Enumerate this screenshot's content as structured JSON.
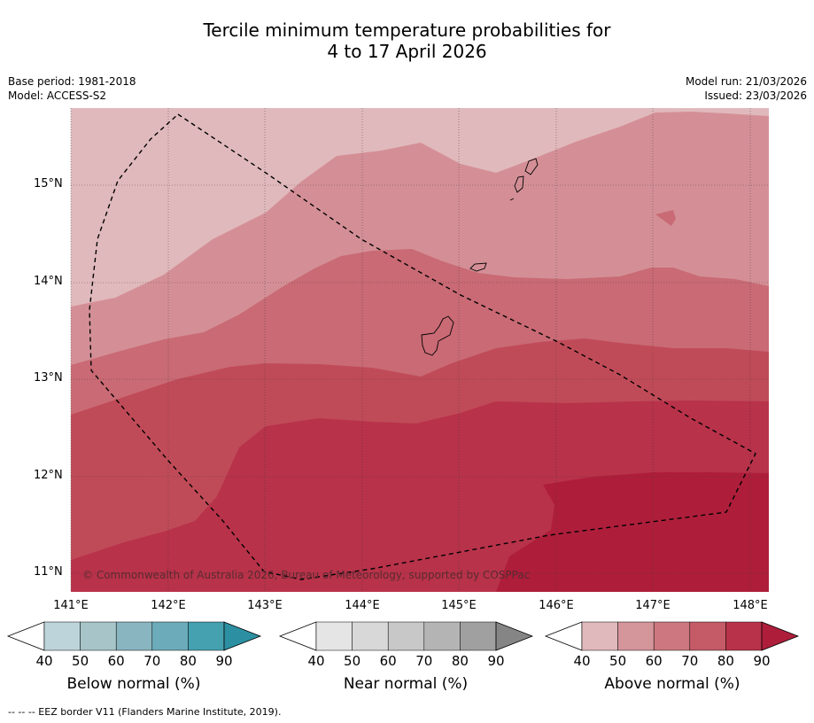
{
  "title": {
    "line1": "Tercile minimum temperature probabilities for",
    "line2": "4 to 17 April 2026"
  },
  "meta_left": {
    "base_period": "Base period: 1981-2018",
    "model": "Model: ACCESS-S2"
  },
  "meta_right": {
    "model_run": "Model run: 21/03/2026",
    "issued": "Issued: 23/03/2026"
  },
  "map": {
    "latitude_labels": [
      "15°N",
      "14°N",
      "13°N",
      "12°N",
      "11°N"
    ],
    "longitude_labels": [
      "141°E",
      "142°E",
      "143°E",
      "144°E",
      "145°E",
      "146°E",
      "147°E",
      "148°E"
    ],
    "copyright": "© Commonwealth of Australia 2026, Bureau of Meteorology, supported by COSPPac",
    "colors": {
      "above_40_50": "#e0b9bc",
      "above_50_60": "#d48f96",
      "above_60_70": "#c96a74",
      "above_70_80": "#c04b58",
      "above_80_90": "#b8324a",
      "above_90": "#ae1e3b",
      "coast": "#000000"
    }
  },
  "colorbars": [
    {
      "title": "Below normal (%)",
      "ticks": [
        "40",
        "50",
        "60",
        "70",
        "80",
        "90"
      ],
      "colors": [
        "#bdd4da",
        "#a7c5c9",
        "#89b5c0",
        "#6cabba",
        "#45a0b0",
        "#2c90a2"
      ]
    },
    {
      "title": "Near normal (%)",
      "ticks": [
        "40",
        "50",
        "60",
        "70",
        "80",
        "90"
      ],
      "colors": [
        "#e5e5e5",
        "#d8d8d8",
        "#c8c8c8",
        "#b4b4b4",
        "#a0a0a0",
        "#858585"
      ]
    },
    {
      "title": "Above normal (%)",
      "ticks": [
        "40",
        "50",
        "60",
        "70",
        "80",
        "90"
      ],
      "colors": [
        "#e0b9bc",
        "#d4959b",
        "#cd7880",
        "#c45b66",
        "#b8324a",
        "#ae1e3b"
      ]
    }
  ],
  "footer": "--  --  -- EEZ border V11 (Flanders Marine Institute, 2019)."
}
